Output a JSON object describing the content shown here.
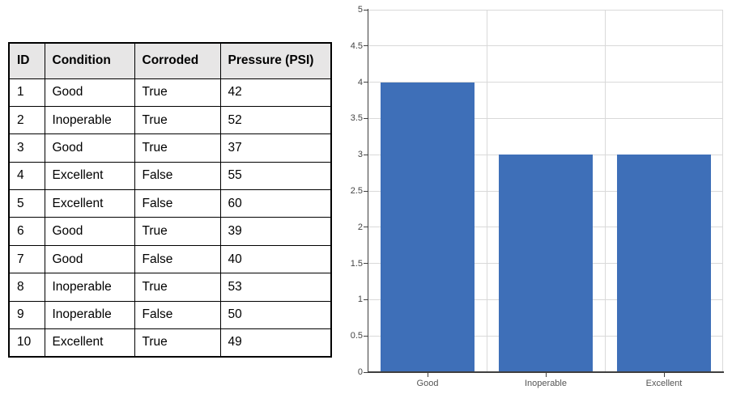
{
  "table": {
    "columns": [
      "ID",
      "Condition",
      "Corroded",
      "Pressure (PSI)"
    ],
    "rows": [
      [
        "1",
        "Good",
        "True",
        "42"
      ],
      [
        "2",
        "Inoperable",
        "True",
        "52"
      ],
      [
        "3",
        "Good",
        "True",
        "37"
      ],
      [
        "4",
        "Excellent",
        "False",
        "55"
      ],
      [
        "5",
        "Excellent",
        "False",
        "60"
      ],
      [
        "6",
        "Good",
        "True",
        "39"
      ],
      [
        "7",
        "Good",
        "False",
        "40"
      ],
      [
        "8",
        "Inoperable",
        "True",
        "53"
      ],
      [
        "9",
        "Inoperable",
        "False",
        "50"
      ],
      [
        "10",
        "Excellent",
        "True",
        "49"
      ]
    ],
    "header_bg": "#E7E6E6",
    "border_color": "#000000"
  },
  "chart_data": {
    "type": "bar",
    "categories": [
      "Good",
      "Inoperable",
      "Excellent"
    ],
    "values": [
      4,
      3,
      3
    ],
    "title": "",
    "xlabel": "",
    "ylabel": "",
    "ylim": [
      0,
      5
    ],
    "y_tick_step": 0.5,
    "y_tick_labels": [
      "0",
      "0.5",
      "1",
      "1.5",
      "2",
      "2.5",
      "3",
      "3.5",
      "4",
      "4.5",
      "5"
    ],
    "grid": true,
    "legend": false,
    "bar_color": "#3E6FB8",
    "gridline_color": "#D9D9D9",
    "axis_color": "#3F3F3F",
    "tick_label_color": "#444444",
    "category_label_color": "#555555"
  }
}
